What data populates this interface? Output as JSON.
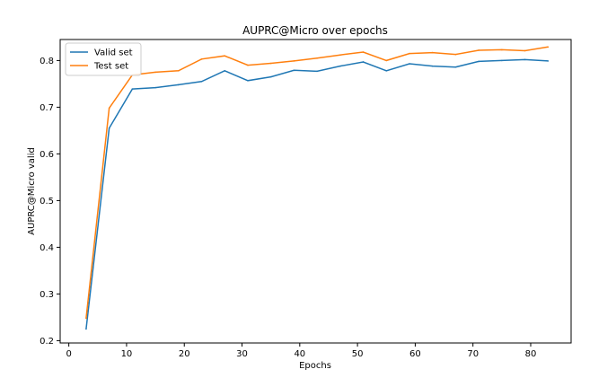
{
  "chart_data": {
    "type": "line",
    "title": "AUPRC@Micro over epochs",
    "xlabel": "Epochs",
    "ylabel": "AUPRC@Micro valid",
    "xlim": [
      -1.5,
      87
    ],
    "ylim": [
      0.195,
      0.845
    ],
    "xticks": [
      0,
      10,
      20,
      30,
      40,
      50,
      60,
      70,
      80
    ],
    "yticks": [
      0.2,
      0.3,
      0.4,
      0.5,
      0.6,
      0.7,
      0.8
    ],
    "grid": false,
    "legend_position": "upper left",
    "x": [
      3,
      7,
      11,
      15,
      19,
      23,
      27,
      31,
      35,
      39,
      43,
      47,
      51,
      55,
      59,
      63,
      67,
      71,
      75,
      79,
      83
    ],
    "series": [
      {
        "name": "Valid set",
        "color": "#1f77b4",
        "values": [
          0.225,
          0.655,
          0.739,
          0.742,
          0.748,
          0.755,
          0.778,
          0.757,
          0.765,
          0.779,
          0.777,
          0.788,
          0.797,
          0.778,
          0.793,
          0.788,
          0.786,
          0.798,
          0.8,
          0.802,
          0.799
        ]
      },
      {
        "name": "Test set",
        "color": "#ff7f0e",
        "values": [
          0.248,
          0.698,
          0.769,
          0.775,
          0.778,
          0.803,
          0.81,
          0.79,
          0.794,
          0.799,
          0.805,
          0.812,
          0.818,
          0.8,
          0.815,
          0.817,
          0.813,
          0.822,
          0.823,
          0.821,
          0.829
        ]
      }
    ]
  }
}
